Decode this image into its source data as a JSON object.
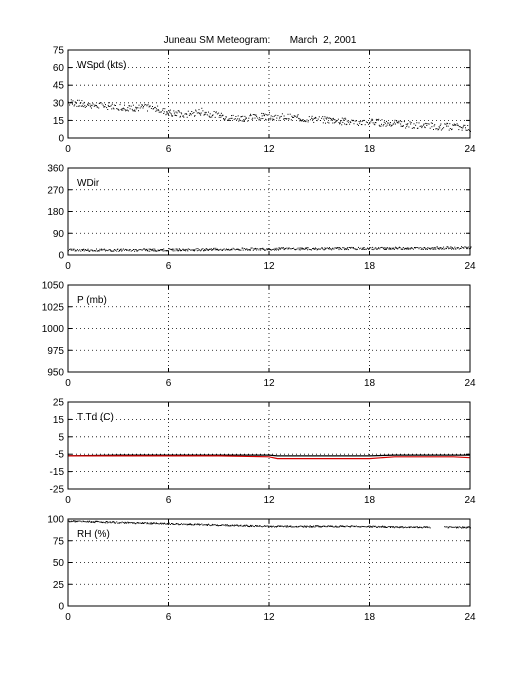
{
  "title": "Juneau SM Meteogram:       March  2, 2001",
  "x_ticks": [
    "0",
    "6",
    "12",
    "18",
    "24"
  ],
  "colors": {
    "temperature": "#000000",
    "dewpoint": "#d40000",
    "axes": "#000000",
    "background": "#ffffff"
  },
  "chart_data": [
    {
      "type": "scatter",
      "label": "WSpd (kts)",
      "xlim": [
        0,
        24
      ],
      "ylim": [
        0,
        75
      ],
      "x_ticks": [
        0,
        6,
        12,
        18,
        24
      ],
      "y_ticks": [
        0,
        15,
        30,
        45,
        60,
        75
      ],
      "y_tick_labels": [
        "0",
        "15",
        "30",
        "45",
        "60",
        "75"
      ],
      "grid": true,
      "series": [
        {
          "x": [
            0,
            1,
            2,
            3,
            4,
            5,
            6,
            7,
            8,
            9,
            10,
            11,
            12,
            13,
            14,
            15,
            16,
            17,
            18,
            19,
            20,
            21,
            22,
            23,
            24
          ],
          "y": [
            31,
            29,
            28,
            27,
            26,
            26,
            22,
            20,
            23,
            19,
            17,
            18,
            19,
            18,
            17,
            16,
            15,
            14,
            14,
            13,
            12,
            11,
            10,
            10,
            9
          ],
          "spread": 3,
          "style": "dots"
        }
      ]
    },
    {
      "type": "scatter",
      "label": "WDir",
      "xlim": [
        0,
        24
      ],
      "ylim": [
        0,
        360
      ],
      "x_ticks": [
        0,
        6,
        12,
        18,
        24
      ],
      "y_ticks": [
        0,
        90,
        180,
        270,
        360
      ],
      "y_tick_labels": [
        "0",
        "90",
        "180",
        "270",
        "360"
      ],
      "grid": true,
      "series": [
        {
          "x": [
            0,
            3,
            6,
            9,
            12,
            15,
            18,
            21,
            24
          ],
          "y": [
            22,
            22,
            23,
            25,
            27,
            28,
            29,
            30,
            32
          ],
          "spread": 5,
          "style": "dots"
        }
      ]
    },
    {
      "type": "line",
      "label": "P (mb)",
      "xlim": [
        0,
        24
      ],
      "ylim": [
        950,
        1050
      ],
      "x_ticks": [
        0,
        6,
        12,
        18,
        24
      ],
      "y_ticks": [
        950,
        975,
        1000,
        1025,
        1050
      ],
      "y_tick_labels": [
        "950",
        "975",
        "1000",
        "1025",
        "1050"
      ],
      "grid": true,
      "series": []
    },
    {
      "type": "line",
      "label": "T Td (C)",
      "xlim": [
        0,
        24
      ],
      "ylim": [
        -25,
        25
      ],
      "x_ticks": [
        0,
        6,
        12,
        18,
        24
      ],
      "y_ticks": [
        -25,
        -15,
        -5,
        5,
        15,
        25
      ],
      "y_tick_labels": [
        "-25",
        "-15",
        "-5",
        "5",
        "15",
        "25"
      ],
      "grid": true,
      "series": [
        {
          "x": [
            0,
            3,
            6,
            9,
            12,
            12.5,
            15,
            18,
            19.5,
            21,
            21.7,
            22.3,
            24
          ],
          "y": [
            -6,
            -5.5,
            -5.5,
            -5.5,
            -5.5,
            -6,
            -6,
            -6,
            -5.5,
            -5.5,
            -5.5,
            -5.5,
            -5.5
          ],
          "color": "#000000"
        },
        {
          "x": [
            0,
            3,
            6,
            9,
            12,
            12.5,
            15,
            18,
            19.5,
            21,
            22,
            23,
            24
          ],
          "y": [
            -6,
            -6,
            -6,
            -6,
            -6.5,
            -7.5,
            -7.5,
            -7.5,
            -6.5,
            -6.5,
            -6.5,
            -6.5,
            -7
          ],
          "color": "#d40000"
        }
      ]
    },
    {
      "type": "scatter",
      "label": "RH (%)",
      "xlim": [
        0,
        24
      ],
      "ylim": [
        0,
        100
      ],
      "x_ticks": [
        0,
        6,
        12,
        18,
        24
      ],
      "y_ticks": [
        0,
        25,
        50,
        75,
        100
      ],
      "y_tick_labels": [
        "0",
        "25",
        "50",
        "75",
        "100"
      ],
      "grid": true,
      "series": [
        {
          "x": [
            0,
            2,
            4,
            6,
            8,
            10,
            12,
            14,
            16,
            18,
            20,
            21.5,
            22.5,
            24
          ],
          "y": [
            98,
            97,
            96,
            95,
            94,
            93,
            92,
            92,
            92,
            92,
            91,
            91,
            91,
            91
          ],
          "spread": 0.8,
          "style": "dots"
        }
      ]
    }
  ]
}
